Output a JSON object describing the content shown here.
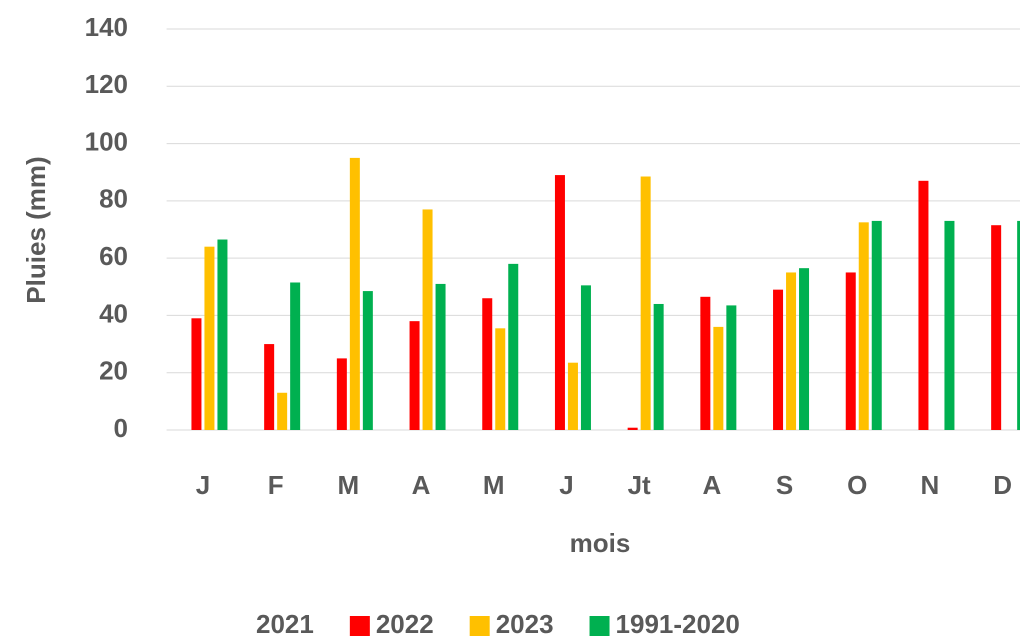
{
  "chart_data": {
    "type": "bar",
    "x_label": "mois",
    "y_label": "Pluies (mm)",
    "categories": [
      "J",
      "F",
      "M",
      "A",
      "M",
      "J",
      "Jt",
      "A",
      "S",
      "O",
      "N",
      "D"
    ],
    "series": [
      {
        "name": "2021",
        "color": "#ffffff",
        "values": [
          null,
          null,
          null,
          null,
          null,
          null,
          null,
          null,
          null,
          null,
          null,
          null
        ]
      },
      {
        "name": "2022",
        "color": "#ff0000",
        "values": [
          39,
          30,
          25,
          38,
          46,
          89,
          0.8,
          46.5,
          49,
          55,
          87,
          71.5
        ]
      },
      {
        "name": "2023",
        "color": "#ffc000",
        "values": [
          64,
          13,
          95,
          77,
          35.5,
          23.5,
          88.5,
          36,
          55,
          72.5,
          null,
          null
        ]
      },
      {
        "name": "1991-2020",
        "color": "#00b050",
        "values": [
          66.5,
          51.5,
          48.5,
          51,
          58,
          50.5,
          44,
          43.5,
          56.5,
          73,
          73,
          73
        ]
      }
    ],
    "ylim": [
      0,
      140
    ],
    "yticks": [
      0,
      20,
      40,
      60,
      80,
      100,
      120,
      140
    ],
    "grid": true
  }
}
